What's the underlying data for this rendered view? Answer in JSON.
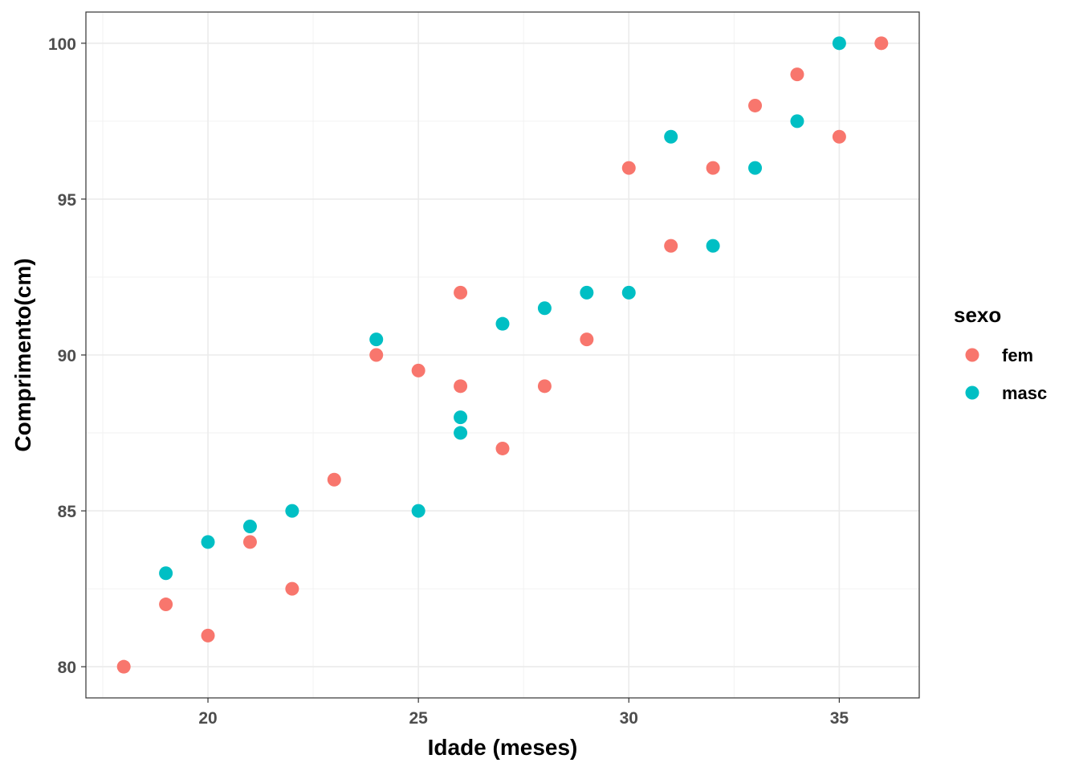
{
  "chart_data": {
    "type": "scatter",
    "title": "",
    "xlabel": "Idade (meses)",
    "ylabel": "Comprimento(cm)",
    "xlim": [
      17.1,
      36.9
    ],
    "ylim": [
      79.0,
      101.0
    ],
    "x_ticks": [
      20,
      25,
      30,
      35
    ],
    "y_ticks": [
      80,
      85,
      90,
      95,
      100
    ],
    "x_tick_labels": [
      "20",
      "25",
      "30",
      "35"
    ],
    "y_tick_labels": [
      "80",
      "85",
      "90",
      "95",
      "100"
    ],
    "grid": true,
    "legend": {
      "title": "sexo",
      "position": "right"
    },
    "series": [
      {
        "name": "fem",
        "color": "#F8766D",
        "points": [
          {
            "x": 18,
            "y": 80
          },
          {
            "x": 19,
            "y": 82
          },
          {
            "x": 20,
            "y": 81
          },
          {
            "x": 21,
            "y": 84
          },
          {
            "x": 22,
            "y": 82.5
          },
          {
            "x": 23,
            "y": 86
          },
          {
            "x": 24,
            "y": 90
          },
          {
            "x": 25,
            "y": 89.5
          },
          {
            "x": 26,
            "y": 92
          },
          {
            "x": 26,
            "y": 89
          },
          {
            "x": 27,
            "y": 87
          },
          {
            "x": 28,
            "y": 89
          },
          {
            "x": 29,
            "y": 90.5
          },
          {
            "x": 30,
            "y": 96
          },
          {
            "x": 31,
            "y": 93.5
          },
          {
            "x": 32,
            "y": 96
          },
          {
            "x": 33,
            "y": 98
          },
          {
            "x": 34,
            "y": 99
          },
          {
            "x": 35,
            "y": 97
          },
          {
            "x": 36,
            "y": 100
          }
        ]
      },
      {
        "name": "masc",
        "color": "#00BFC4",
        "points": [
          {
            "x": 19,
            "y": 83
          },
          {
            "x": 20,
            "y": 84
          },
          {
            "x": 21,
            "y": 84.5
          },
          {
            "x": 22,
            "y": 85
          },
          {
            "x": 24,
            "y": 90.5
          },
          {
            "x": 25,
            "y": 85
          },
          {
            "x": 26,
            "y": 88
          },
          {
            "x": 26,
            "y": 87.5
          },
          {
            "x": 27,
            "y": 91
          },
          {
            "x": 28,
            "y": 91.5
          },
          {
            "x": 29,
            "y": 92
          },
          {
            "x": 30,
            "y": 92
          },
          {
            "x": 31,
            "y": 97
          },
          {
            "x": 32,
            "y": 93.5
          },
          {
            "x": 33,
            "y": 96
          },
          {
            "x": 34,
            "y": 97.5
          },
          {
            "x": 35,
            "y": 100
          }
        ]
      }
    ]
  }
}
